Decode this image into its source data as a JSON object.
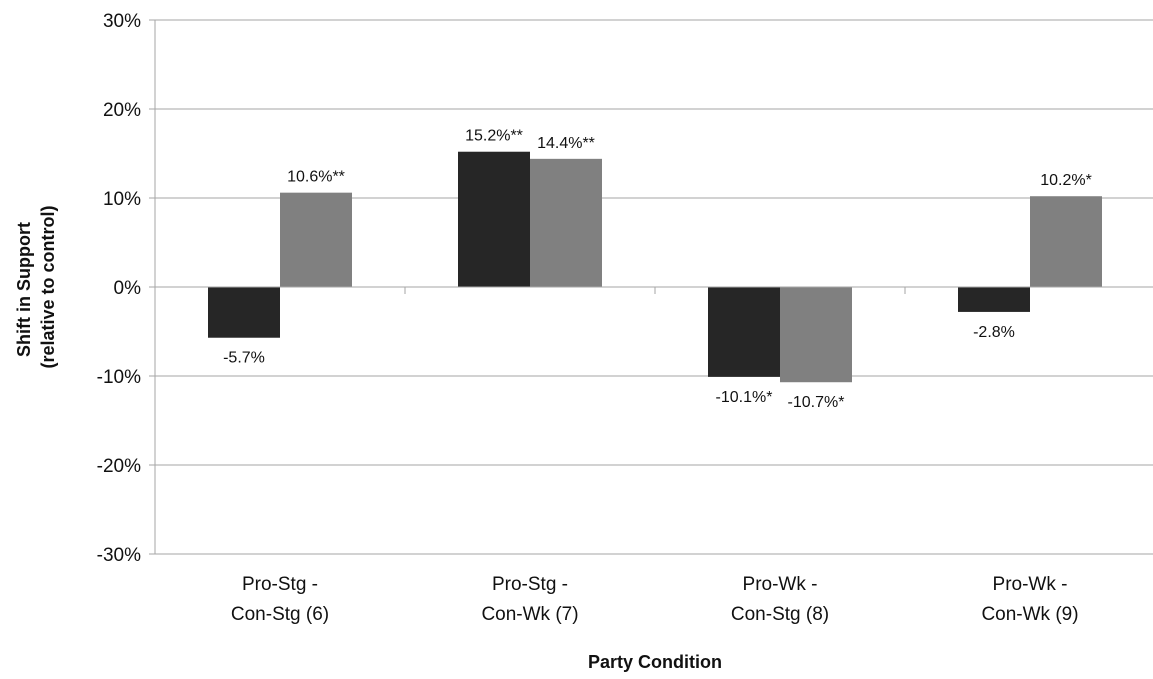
{
  "chart_data": {
    "type": "bar",
    "title": "",
    "xlabel": "Party Condition",
    "ylabel_lines": [
      "Shift in Support",
      "(relative to control)"
    ],
    "ylim": [
      -30,
      30
    ],
    "y_ticks": [
      30,
      20,
      10,
      0,
      -10,
      -20,
      -30
    ],
    "y_tick_labels": [
      "30%",
      "20%",
      "10%",
      "0%",
      "-10%",
      "-20%",
      "-30%"
    ],
    "categories": [
      [
        "Pro-Stg -",
        "Con-Stg (6)"
      ],
      [
        "Pro-Stg -",
        "Con-Wk (7)"
      ],
      [
        "Pro-Wk -",
        "Con-Stg (8)"
      ],
      [
        "Pro-Wk -",
        "Con-Wk (9)"
      ]
    ],
    "series": [
      {
        "color": "#262626",
        "values": [
          -5.7,
          15.2,
          -10.1,
          -2.8
        ],
        "labels": [
          "-5.7%",
          "15.2%**",
          "-10.1%*",
          "-2.8%"
        ]
      },
      {
        "color": "#808080",
        "values": [
          10.6,
          14.4,
          -10.7,
          10.2
        ],
        "labels": [
          "10.6%**",
          "14.4%**",
          "-10.7%*",
          "10.2%*"
        ]
      }
    ],
    "grid": true,
    "legend": false
  }
}
